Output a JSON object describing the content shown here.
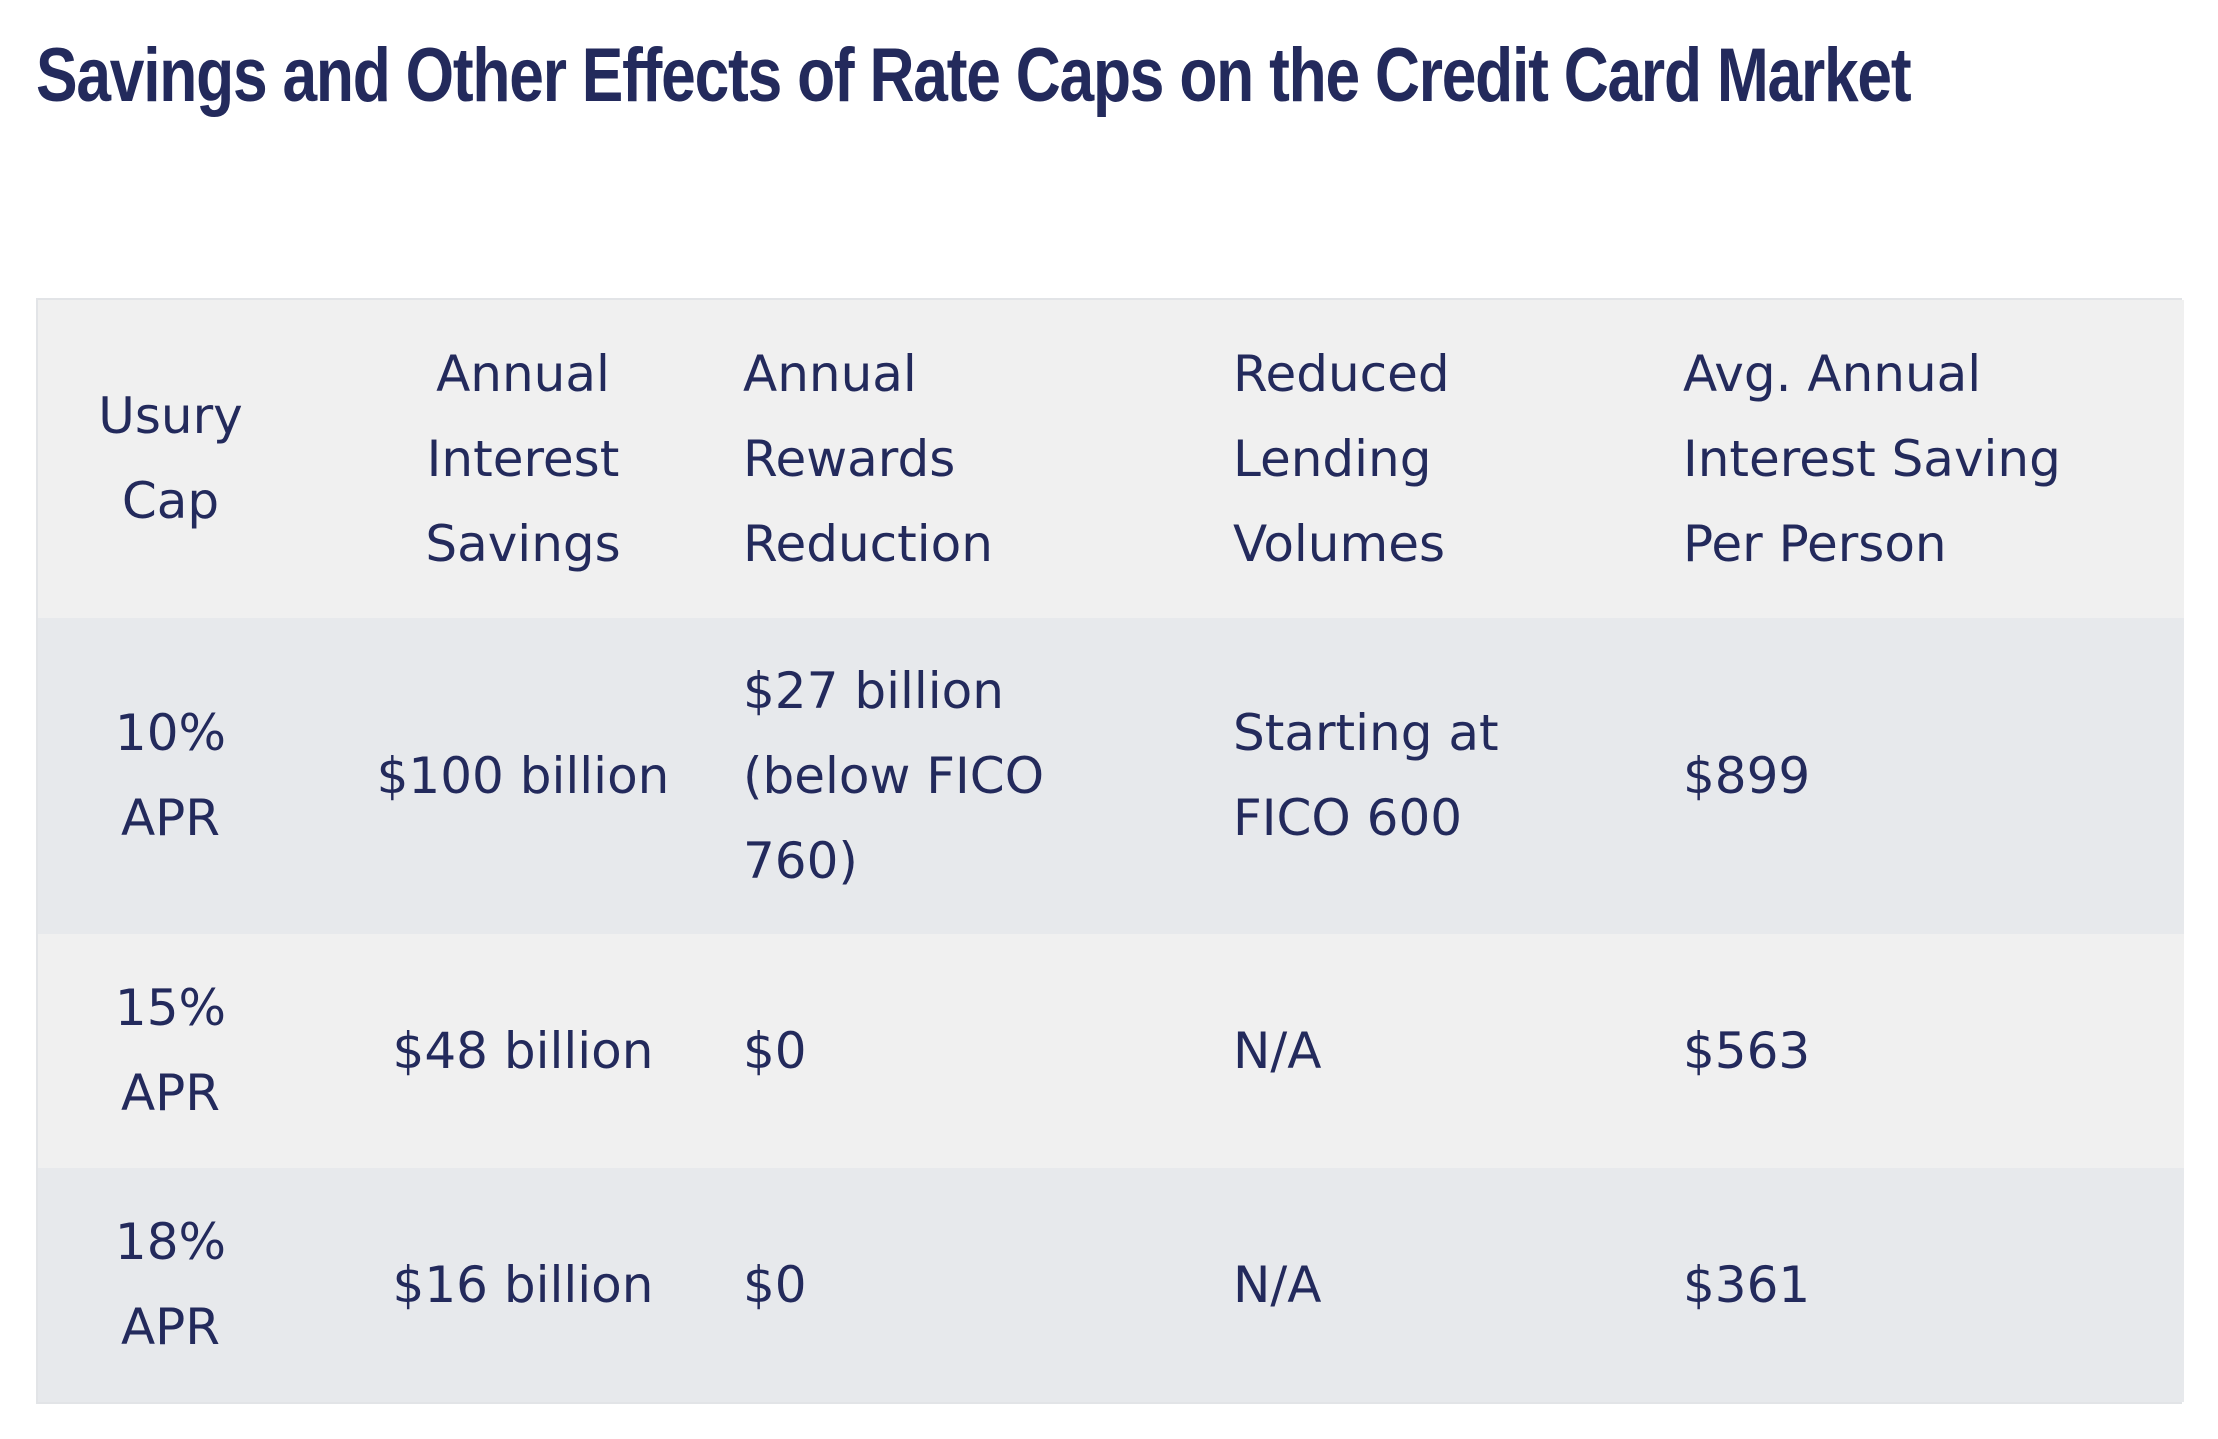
{
  "title": "Savings and Other Effects of Rate Caps on the Credit Card Market",
  "table": {
    "headers": [
      "Usury Cap",
      "Annual Interest Savings",
      "Annual Rewards Reduction",
      "Reduced Lending Volumes",
      "Avg. Annual Interest Saving Per Person"
    ],
    "rows": [
      [
        "10% APR",
        "$100 billion",
        "$27 billion (below FICO 760)",
        "Starting at FICO 600",
        "$899"
      ],
      [
        "15% APR",
        "$48 billion",
        "$0",
        "N/A",
        "$563"
      ],
      [
        "18% APR",
        "$16 billion",
        "$0",
        "N/A",
        "$361"
      ]
    ]
  },
  "colors": {
    "text": "#232a5c",
    "header_bg": "#f0f0f0",
    "row_alt_bg": "#e7e9ec"
  }
}
